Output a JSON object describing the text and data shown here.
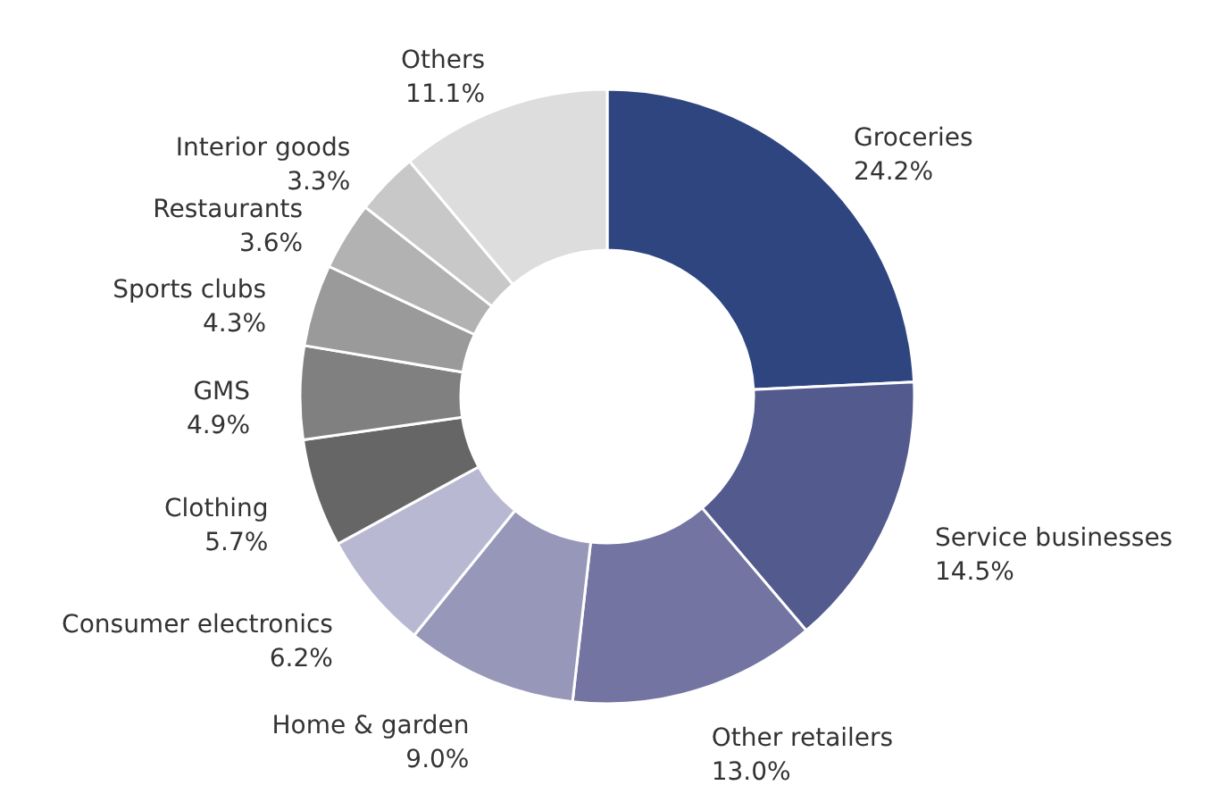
{
  "chart_data": {
    "type": "donut",
    "categories": [
      "Groceries",
      "Service businesses",
      "Other retailers",
      "Home & garden",
      "Consumer electronics",
      "Clothing",
      "GMS",
      "Sports clubs",
      "Restaurants",
      "Interior goods",
      "Others"
    ],
    "values": [
      24.2,
      14.5,
      13.0,
      9.0,
      6.2,
      5.7,
      4.9,
      4.3,
      3.6,
      3.3,
      11.1
    ],
    "value_labels": [
      "24.2%",
      "14.5%",
      "13.0%",
      "9.0%",
      "6.2%",
      "5.7%",
      "4.9%",
      "4.3%",
      "3.6%",
      "3.3%",
      "11.1%"
    ],
    "colors": [
      "#2e4580",
      "#525a8e",
      "#7474a2",
      "#9797b9",
      "#b9b8d2",
      "#666666",
      "#808080",
      "#9a9a9a",
      "#b2b2b2",
      "#c8c8c8",
      "#dcdddc"
    ]
  }
}
